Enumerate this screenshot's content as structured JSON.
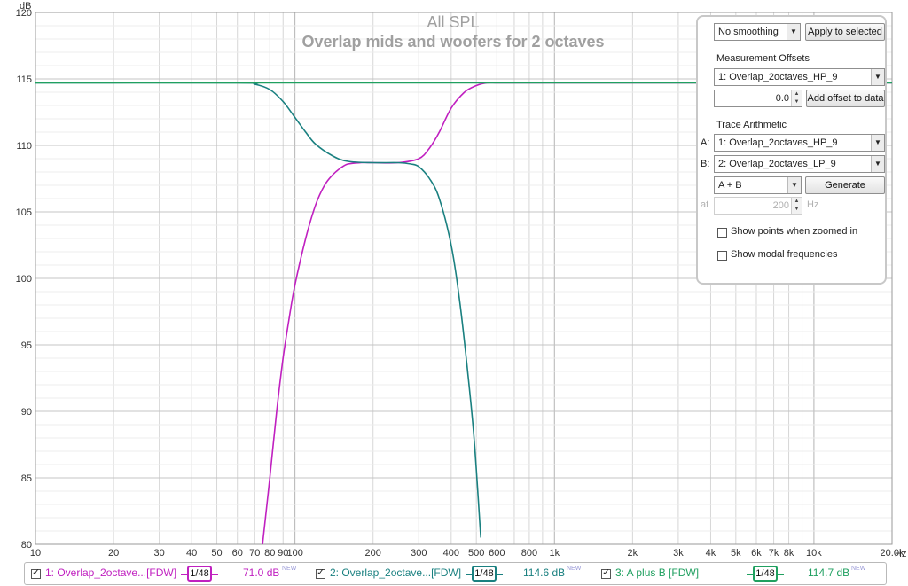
{
  "chart_data": {
    "type": "line",
    "title": "All SPL",
    "subtitle": "Overlap mids and woofers for 2 octaves",
    "ylabel": "dB",
    "xlabel": "Hz",
    "x_scale": "log",
    "xlim": [
      10,
      20000
    ],
    "ylim": [
      80,
      120
    ],
    "grid": true,
    "y_ticks": [
      "80",
      "85",
      "90",
      "95",
      "100",
      "105",
      "110",
      "115",
      "120"
    ],
    "x_ticks": [
      {
        "v": 10,
        "label": "10"
      },
      {
        "v": 20,
        "label": "20"
      },
      {
        "v": 30,
        "label": "30"
      },
      {
        "v": 40,
        "label": "40"
      },
      {
        "v": 50,
        "label": "50"
      },
      {
        "v": 60,
        "label": "60"
      },
      {
        "v": 70,
        "label": "70"
      },
      {
        "v": 80,
        "label": "80"
      },
      {
        "v": 90,
        "label": "90"
      },
      {
        "v": 100,
        "label": "100"
      },
      {
        "v": 200,
        "label": "200"
      },
      {
        "v": 300,
        "label": "300"
      },
      {
        "v": 400,
        "label": "400"
      },
      {
        "v": 500,
        "label": "500"
      },
      {
        "v": 600,
        "label": "600"
      },
      {
        "v": 800,
        "label": "800"
      },
      {
        "v": 1000,
        "label": "1k"
      },
      {
        "v": 2000,
        "label": "2k"
      },
      {
        "v": 3000,
        "label": "3k"
      },
      {
        "v": 4000,
        "label": "4k"
      },
      {
        "v": 5000,
        "label": "5k"
      },
      {
        "v": 6000,
        "label": "6k"
      },
      {
        "v": 7000,
        "label": "7k"
      },
      {
        "v": 8000,
        "label": "8k"
      },
      {
        "v": 10000,
        "label": "10k"
      },
      {
        "v": 20000,
        "label": "20.0k"
      }
    ],
    "series": [
      {
        "name": "1: Overlap_2octave...[FDW]",
        "color": "#c020c0",
        "x": [
          75,
          80,
          85,
          90,
          95,
          100,
          110,
          120,
          130,
          140,
          150,
          160,
          180,
          200,
          250,
          300,
          330,
          360,
          400,
          450,
          500,
          550,
          600,
          700,
          1000,
          20000
        ],
        "y": [
          80,
          85,
          90,
          94,
          97,
          99.5,
          103,
          105.5,
          107.0,
          107.8,
          108.3,
          108.6,
          108.7,
          108.7,
          108.7,
          109.0,
          109.8,
          111.0,
          112.8,
          114.0,
          114.5,
          114.7,
          114.7,
          114.7,
          114.7,
          114.7
        ]
      },
      {
        "name": "2: Overlap_2octave...[FDW]",
        "color": "#1a8080",
        "x": [
          10,
          60,
          70,
          80,
          90,
          100,
          110,
          120,
          140,
          160,
          200,
          250,
          280,
          300,
          330,
          360,
          400,
          430,
          460,
          490,
          520
        ],
        "y": [
          114.7,
          114.7,
          114.6,
          114.2,
          113.3,
          112.1,
          111.0,
          110.1,
          109.2,
          108.8,
          108.7,
          108.7,
          108.6,
          108.4,
          107.5,
          106.0,
          102.5,
          98.5,
          93.5,
          88,
          80.5
        ]
      },
      {
        "name": "3: A plus B [FDW]",
        "color": "#20a060",
        "x": [
          10,
          20000
        ],
        "y": [
          114.7,
          114.7
        ]
      }
    ]
  },
  "panel": {
    "smoothing": "No  smoothing",
    "apply_label": "Apply to selected",
    "offsets_heading": "Measurement Offsets",
    "offset_measurement": "1: Overlap_2octaves_HP_9",
    "offset_value": "0.0",
    "add_offset_label": "Add offset to data",
    "arith_heading": "Trace Arithmetic",
    "a_label": "A:",
    "a_value": "1: Overlap_2octaves_HP_9",
    "b_label": "B:",
    "b_value": "2: Overlap_2octaves_LP_9",
    "op_value": "A + B",
    "generate_label": "Generate",
    "at_label": "at",
    "at_value": "200",
    "hz_label": "Hz",
    "show_points_label": "Show points when zoomed in",
    "show_modal_label": "Show modal frequencies"
  },
  "legend": {
    "items": [
      {
        "label": "1: Overlap_2octave...[FDW]",
        "smoothing": "1/48",
        "value": "71.0 dB",
        "badge": "NEW",
        "color": "#c020c0"
      },
      {
        "label": "2: Overlap_2octave...[FDW]",
        "smoothing": "1/48",
        "value": "114.6 dB",
        "badge": "NEW",
        "color": "#1a8080"
      },
      {
        "label": "3: A plus B [FDW]",
        "smoothing": "1/48",
        "value": "114.7 dB",
        "badge": "NEW",
        "color": "#20a060"
      }
    ]
  }
}
